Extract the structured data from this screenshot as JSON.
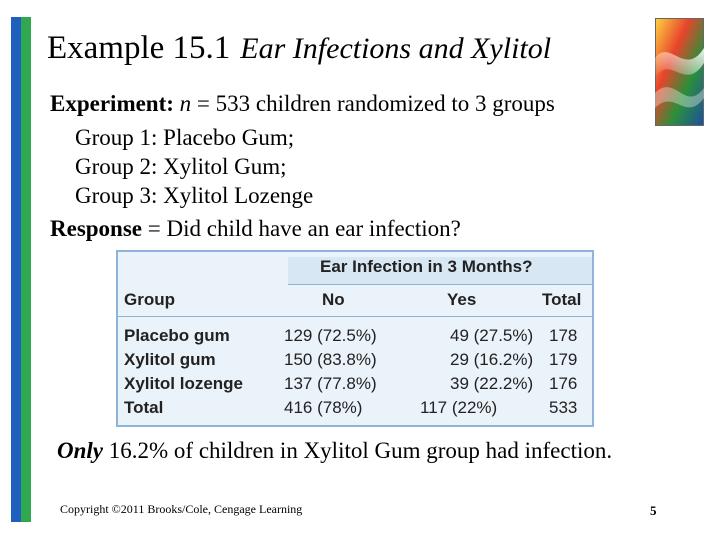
{
  "title": {
    "main": "Example 15.1",
    "sub": "Ear Infections and Xylitol"
  },
  "body": {
    "experiment_label": "Experiment:",
    "experiment_n_var": "n",
    "experiment_text": " = 533 children randomized to 3 groups",
    "groups": [
      "Group 1: Placebo Gum;",
      "Group 2: Xylitol Gum;",
      "Group 3: Xylitol Lozenge"
    ],
    "response_label": "Response",
    "response_text": " = Did child have an ear infection?"
  },
  "table": {
    "span_header": "Ear Infection in 3 Months?",
    "columns": [
      "Group",
      "No",
      "Yes",
      "Total"
    ],
    "rows": [
      {
        "group": "Placebo gum",
        "no": "129 (72.5%)",
        "yes": "49 (27.5%)",
        "total": "178"
      },
      {
        "group": "Xylitol gum",
        "no": "150 (83.8%)",
        "yes": "29 (16.2%)",
        "total": "179"
      },
      {
        "group": "Xylitol lozenge",
        "no": "137 (77.8%)",
        "yes": "39 (22.2%)",
        "total": "176"
      },
      {
        "group": "Total",
        "no": "416 (78%)",
        "yes": "117 (22%)",
        "total": "533"
      }
    ]
  },
  "conclusion": {
    "emph": "Only",
    "text": " 16.2% of children in Xylitol Gum group had infection."
  },
  "footer": {
    "copyright": "Copyright ©2011 Brooks/Cole, Cengage Learning",
    "page_number": "5"
  },
  "colors": {
    "accent_blue": "#1f5fbf",
    "accent_green": "#2fa84f",
    "table_border": "#8fb4d9",
    "table_background": "#eaf2fa"
  }
}
